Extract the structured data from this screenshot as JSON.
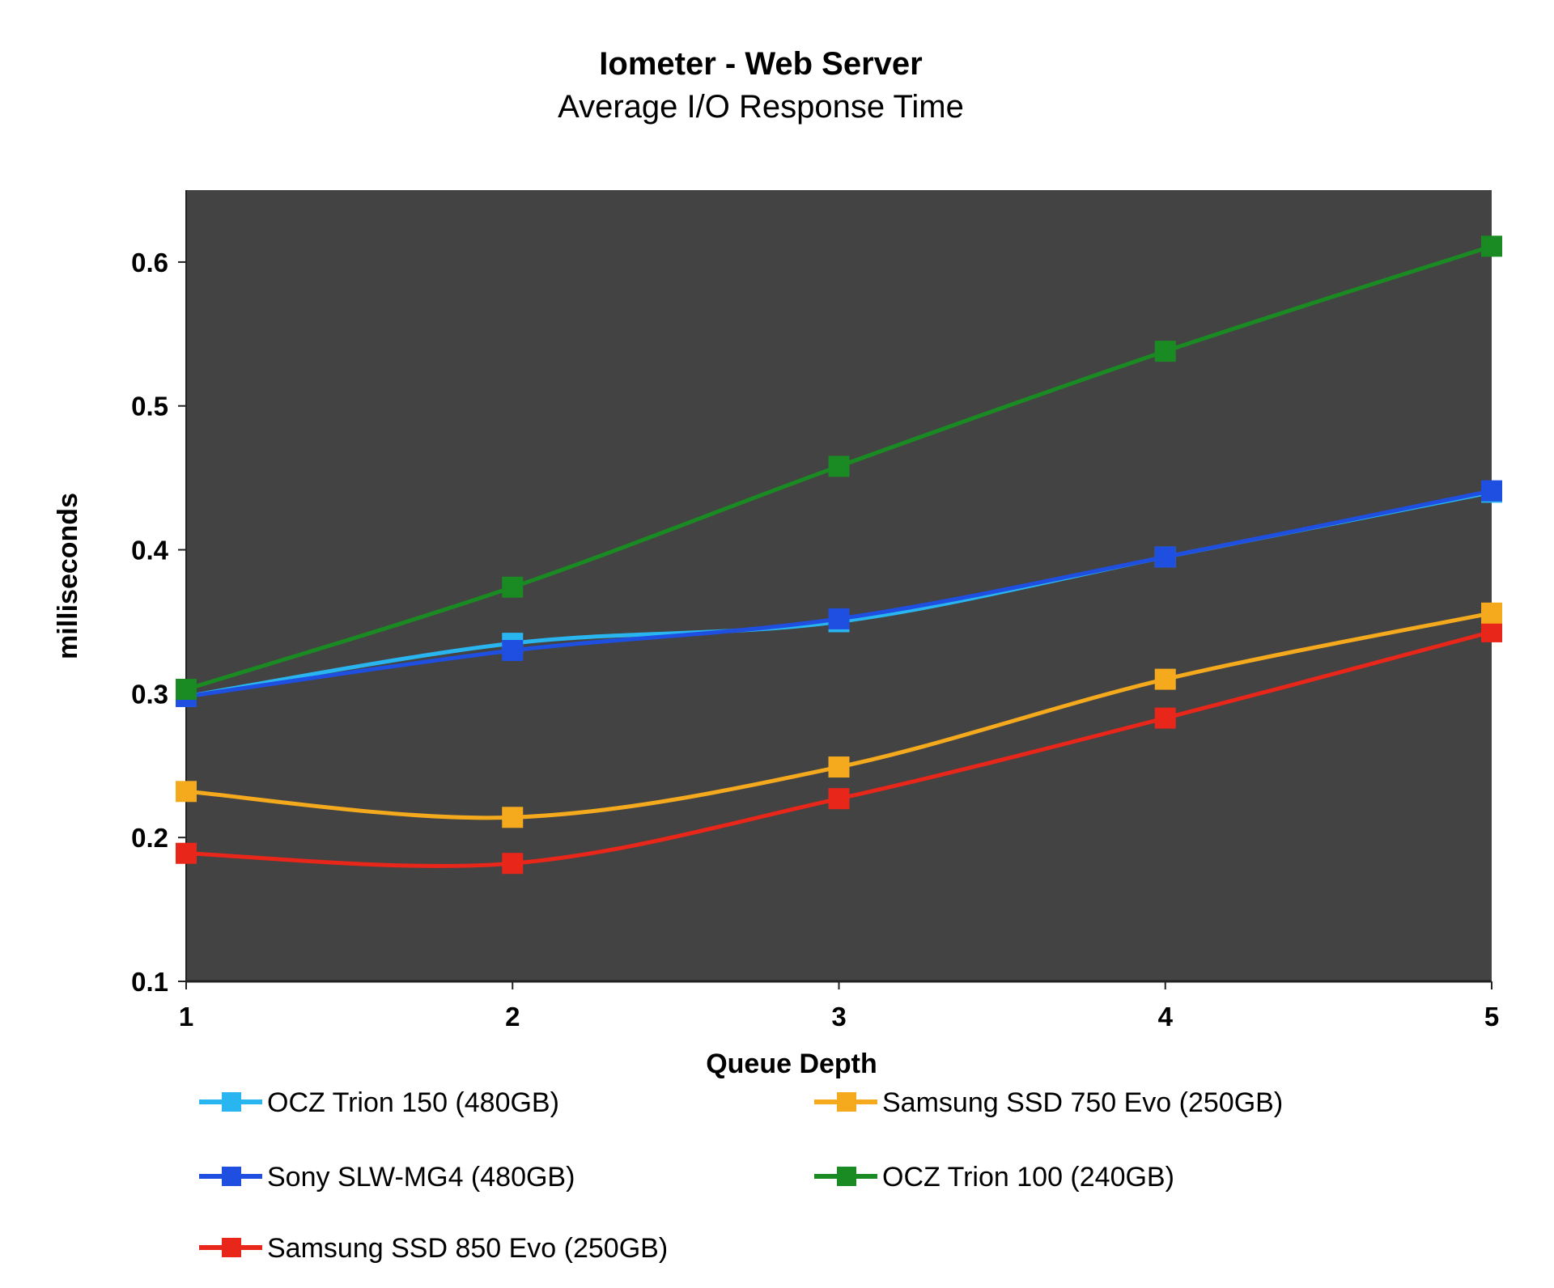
{
  "chart_data": {
    "type": "line",
    "title": "Iometer - Web Server",
    "subtitle": "Average I/O Response Time",
    "xlabel": "Queue Depth",
    "ylabel": "milliseconds",
    "x": [
      1,
      2,
      3,
      4,
      5
    ],
    "x_ticks": [
      "1",
      "2",
      "3",
      "4",
      "5"
    ],
    "ylim": [
      0.1,
      0.65
    ],
    "y_ticks": [
      "0.1",
      "0.2",
      "0.3",
      "0.4",
      "0.5",
      "0.6"
    ],
    "y_tick_values": [
      0.1,
      0.2,
      0.3,
      0.4,
      0.5,
      0.6
    ],
    "plot_background": "#434343",
    "grid": false,
    "legend_position": "bottom",
    "series": [
      {
        "name": "OCZ Trion 150 (480GB)",
        "color": "#29b6f0",
        "values": [
          0.298,
          0.335,
          0.35,
          0.395,
          0.44
        ]
      },
      {
        "name": "Sony SLW-MG4 (480GB)",
        "color": "#1f4fe0",
        "values": [
          0.298,
          0.33,
          0.352,
          0.395,
          0.441
        ]
      },
      {
        "name": "Samsung SSD 850 Evo (250GB)",
        "color": "#e8261a",
        "values": [
          0.189,
          0.182,
          0.227,
          0.283,
          0.343
        ]
      },
      {
        "name": "Samsung SSD 750 Evo (250GB)",
        "color": "#f5a91c",
        "values": [
          0.232,
          0.214,
          0.249,
          0.31,
          0.356
        ]
      },
      {
        "name": "OCZ Trion 100 (240GB)",
        "color": "#1a8a22",
        "values": [
          0.303,
          0.374,
          0.458,
          0.538,
          0.611
        ]
      }
    ]
  }
}
